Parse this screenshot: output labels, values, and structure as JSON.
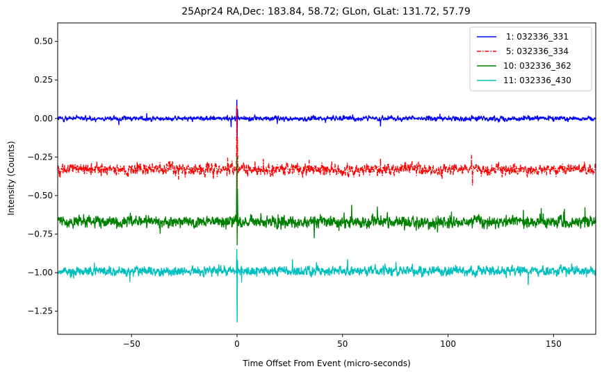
{
  "chart_data": {
    "type": "line",
    "title": "25Apr24 RA,Dec:  183.84,  58.72; GLon, GLat:  131.72,  57.79",
    "xlabel": "Time Offset From Event (micro-seconds)",
    "ylabel": "Intensity (Counts)",
    "xlim": [
      -85,
      170
    ],
    "ylim": [
      -1.4,
      0.62
    ],
    "x_ticks": [
      -50,
      0,
      50,
      100,
      150
    ],
    "x_tick_labels": [
      "−50",
      "0",
      "50",
      "100",
      "150"
    ],
    "y_ticks": [
      0.5,
      0.25,
      0.0,
      -0.25,
      -0.5,
      -0.75,
      -1.0,
      -1.25
    ],
    "y_tick_labels": [
      "0.50",
      "0.25",
      "0.00",
      "−0.25",
      "−0.50",
      "−0.75",
      "−1.00",
      "−1.25"
    ],
    "legend_position": "top-right",
    "grid": false,
    "series": [
      {
        "name": " 1: 032336_331",
        "color": "#0000ff",
        "style": "solid",
        "baseline": 0.0,
        "noise_amplitude": 0.02,
        "spike": {
          "x": 0.0,
          "peak": 0.12,
          "trough": -0.12
        }
      },
      {
        "name": " 5: 032336_334",
        "color": "#ff0000",
        "style": "dashdot",
        "baseline": -0.33,
        "noise_amplitude": 0.05,
        "spike": {
          "x": 0.0,
          "peak": 0.08,
          "trough": -0.5
        }
      },
      {
        "name": "10: 032336_362",
        "color": "#008000",
        "style": "solid",
        "baseline": -0.67,
        "noise_amplitude": 0.05,
        "spike": {
          "x": 0.0,
          "peak": -0.25,
          "trough": -0.82
        }
      },
      {
        "name": "11: 032336_430",
        "color": "#00bfbf",
        "style": "solid",
        "baseline": -0.99,
        "noise_amplitude": 0.04,
        "spike": {
          "x": 0.0,
          "peak": -0.85,
          "trough": -1.32
        }
      }
    ]
  }
}
